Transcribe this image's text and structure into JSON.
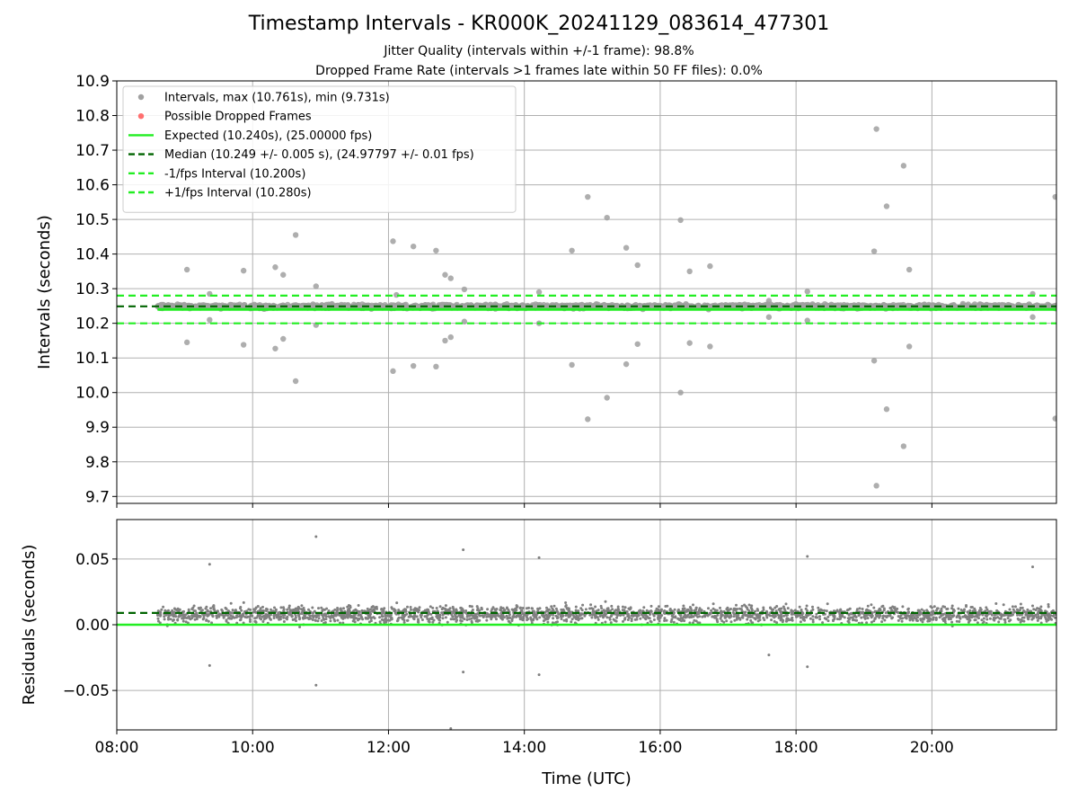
{
  "figure": {
    "title": "Timestamp Intervals - KR000K_20241129_083614_477301",
    "subtitle_1": "Jitter Quality (intervals within +/-1 frame): 98.8%",
    "subtitle_2": "Dropped Frame Rate (intervals >1 frames late within 50 FF files): 0.0%"
  },
  "colors": {
    "points": "#808080",
    "dropped": "#ff6f6f",
    "expected": "#22ee22",
    "median": "#006400",
    "bounds": "#22ee22",
    "grid": "#b0b0b0"
  },
  "chart_data": [
    {
      "type": "scatter",
      "panel": "top",
      "ylabel": "Intervals (seconds)",
      "xlabel": "",
      "xlim": [
        "08:00",
        "21:50"
      ],
      "ylim": [
        9.68,
        10.9
      ],
      "yticks": [
        "9.7",
        "9.8",
        "9.9",
        "10.0",
        "10.1",
        "10.2",
        "10.3",
        "10.4",
        "10.5",
        "10.6",
        "10.7",
        "10.8",
        "10.9"
      ],
      "xticks": [
        "08:00",
        "10:00",
        "12:00",
        "14:00",
        "16:00",
        "18:00",
        "20:00"
      ],
      "grid": true,
      "legend_position": "top-left",
      "legend": [
        {
          "label": "Intervals, max (10.761s), min (9.731s)",
          "kind": "marker",
          "color": "#a0a0a0"
        },
        {
          "label": "Possible Dropped Frames",
          "kind": "marker",
          "color": "#ff6f6f"
        },
        {
          "label": "Expected (10.240s), (25.00000 fps)",
          "kind": "solid",
          "color": "#22ee22"
        },
        {
          "label": "Median (10.249 +/- 0.005 s), (24.97797 +/- 0.01 fps)",
          "kind": "dashed",
          "color": "#006400"
        },
        {
          "label": "-1/fps Interval (10.200s)",
          "kind": "dashed",
          "color": "#22ee22"
        },
        {
          "label": "+1/fps Interval (10.280s)",
          "kind": "dashed",
          "color": "#22ee22"
        }
      ],
      "reference_lines": {
        "expected": 10.24,
        "median": 10.249,
        "lower": 10.2,
        "upper": 10.28,
        "median_from": "08:00",
        "expected_from": "08:36"
      },
      "data_range": {
        "start": "08:36",
        "end": "21:50"
      },
      "outliers": [
        {
          "t": "09:02",
          "y": 10.355
        },
        {
          "t": "09:02",
          "y": 10.145
        },
        {
          "t": "09:22",
          "y": 10.285
        },
        {
          "t": "09:22",
          "y": 10.21
        },
        {
          "t": "09:52",
          "y": 10.352
        },
        {
          "t": "09:52",
          "y": 10.138
        },
        {
          "t": "10:20",
          "y": 10.362
        },
        {
          "t": "10:20",
          "y": 10.127
        },
        {
          "t": "10:27",
          "y": 10.34
        },
        {
          "t": "10:27",
          "y": 10.155
        },
        {
          "t": "10:38",
          "y": 10.455
        },
        {
          "t": "10:38",
          "y": 10.033
        },
        {
          "t": "10:56",
          "y": 10.307
        },
        {
          "t": "10:56",
          "y": 10.195
        },
        {
          "t": "12:04",
          "y": 10.437
        },
        {
          "t": "12:04",
          "y": 10.062
        },
        {
          "t": "12:07",
          "y": 10.282
        },
        {
          "t": "12:22",
          "y": 10.422
        },
        {
          "t": "12:22",
          "y": 10.077
        },
        {
          "t": "12:42",
          "y": 10.41
        },
        {
          "t": "12:42",
          "y": 10.075
        },
        {
          "t": "12:50",
          "y": 10.34
        },
        {
          "t": "12:50",
          "y": 10.15
        },
        {
          "t": "12:55",
          "y": 10.33
        },
        {
          "t": "12:55",
          "y": 10.16
        },
        {
          "t": "13:07",
          "y": 10.298
        },
        {
          "t": "13:07",
          "y": 10.205
        },
        {
          "t": "14:13",
          "y": 10.29
        },
        {
          "t": "14:13",
          "y": 10.2
        },
        {
          "t": "14:42",
          "y": 10.41
        },
        {
          "t": "14:42",
          "y": 10.08
        },
        {
          "t": "14:56",
          "y": 10.565
        },
        {
          "t": "14:56",
          "y": 9.923
        },
        {
          "t": "15:13",
          "y": 10.505
        },
        {
          "t": "15:13",
          "y": 9.985
        },
        {
          "t": "15:30",
          "y": 10.418
        },
        {
          "t": "15:30",
          "y": 10.082
        },
        {
          "t": "15:40",
          "y": 10.368
        },
        {
          "t": "15:40",
          "y": 10.14
        },
        {
          "t": "16:18",
          "y": 10.498
        },
        {
          "t": "16:18",
          "y": 10.0
        },
        {
          "t": "16:26",
          "y": 10.35
        },
        {
          "t": "16:26",
          "y": 10.143
        },
        {
          "t": "16:44",
          "y": 10.365
        },
        {
          "t": "16:44",
          "y": 10.133
        },
        {
          "t": "17:36",
          "y": 10.265
        },
        {
          "t": "17:36",
          "y": 10.218
        },
        {
          "t": "18:10",
          "y": 10.292
        },
        {
          "t": "18:10",
          "y": 10.208
        },
        {
          "t": "19:09",
          "y": 10.408
        },
        {
          "t": "19:09",
          "y": 10.092
        },
        {
          "t": "19:11",
          "y": 10.761
        },
        {
          "t": "19:11",
          "y": 9.731
        },
        {
          "t": "19:20",
          "y": 10.538
        },
        {
          "t": "19:20",
          "y": 9.952
        },
        {
          "t": "19:35",
          "y": 10.655
        },
        {
          "t": "19:35",
          "y": 9.845
        },
        {
          "t": "19:40",
          "y": 10.355
        },
        {
          "t": "19:40",
          "y": 10.133
        },
        {
          "t": "21:29",
          "y": 10.285
        },
        {
          "t": "21:29",
          "y": 10.218
        },
        {
          "t": "21:49",
          "y": 10.565
        },
        {
          "t": "21:49",
          "y": 9.925
        }
      ]
    },
    {
      "type": "scatter",
      "panel": "bottom",
      "ylabel": "Residuals (seconds)",
      "xlabel": "Time (UTC)",
      "xlim": [
        "08:00",
        "21:50"
      ],
      "ylim": [
        -0.08,
        0.08
      ],
      "yticks": [
        "−0.05",
        "0.00",
        "0.05"
      ],
      "xticks": [
        "08:00",
        "10:00",
        "12:00",
        "14:00",
        "16:00",
        "18:00",
        "20:00"
      ],
      "grid": true,
      "reference_lines": {
        "zero": 0.0,
        "median": 0.009
      },
      "data_range": {
        "start": "08:36",
        "end": "21:50"
      },
      "outliers": [
        {
          "t": "09:22",
          "y": 0.046
        },
        {
          "t": "09:22",
          "y": -0.031
        },
        {
          "t": "10:56",
          "y": 0.067
        },
        {
          "t": "10:56",
          "y": -0.046
        },
        {
          "t": "13:06",
          "y": 0.057
        },
        {
          "t": "13:06",
          "y": -0.036
        },
        {
          "t": "12:55",
          "y": -0.079
        },
        {
          "t": "14:13",
          "y": 0.051
        },
        {
          "t": "14:13",
          "y": -0.038
        },
        {
          "t": "17:36",
          "y": -0.023
        },
        {
          "t": "18:10",
          "y": 0.052
        },
        {
          "t": "18:10",
          "y": -0.032
        },
        {
          "t": "21:29",
          "y": 0.044
        }
      ]
    }
  ]
}
